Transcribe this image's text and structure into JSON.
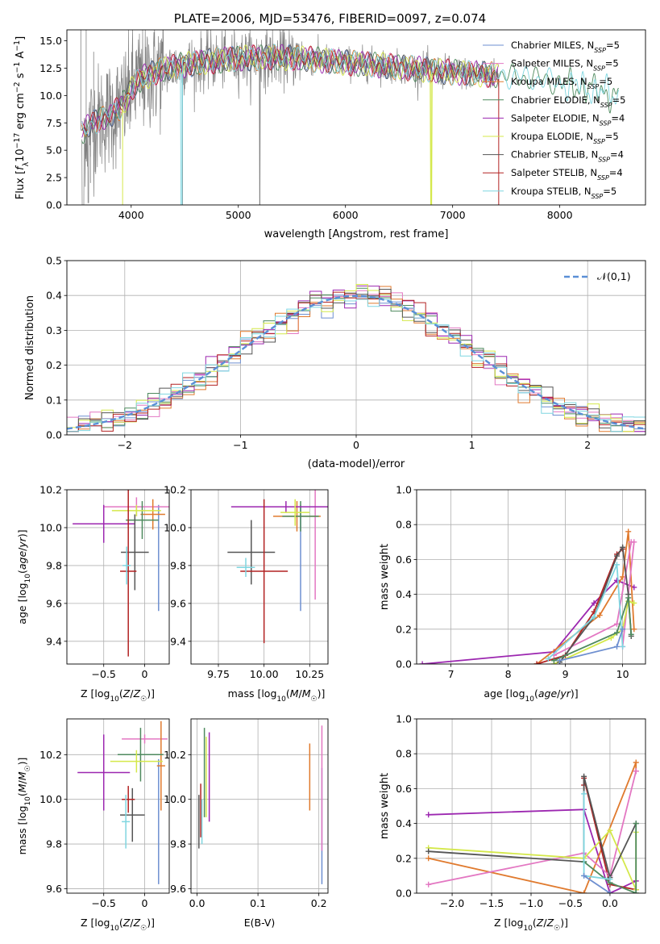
{
  "title": "PLATE=2006, MJD=53476, FIBERID=0097, z=0.074",
  "chart_data": [
    {
      "id": "spectrum",
      "type": "line",
      "xlabel": "wavelength [Angstrom, rest frame]",
      "ylabel": "Flux [f_λ 10^-17 erg cm^-2 s^-1 A^-1]",
      "xlim": [
        3400,
        8800
      ],
      "ylim": [
        0,
        16
      ],
      "xticks": [
        4000,
        5000,
        6000,
        7000,
        8000
      ],
      "yticks": [
        0.0,
        2.5,
        5.0,
        7.5,
        10.0,
        12.5,
        15.0
      ],
      "legend_position": "right",
      "series": [
        {
          "name": "Chabrier MILES, N_SSP=5",
          "color": "#6e8fd0"
        },
        {
          "name": "Salpeter MILES, N_SSP=5",
          "color": "#e377c2"
        },
        {
          "name": "Kroupa MILES, N_SSP=5",
          "color": "#e07a2e"
        },
        {
          "name": "Chabrier ELODIE, N_SSP=5",
          "color": "#4e8a5e"
        },
        {
          "name": "Salpeter ELODIE, N_SSP=4",
          "color": "#9c27b0"
        },
        {
          "name": "Kroupa ELODIE, N_SSP=5",
          "color": "#d4e84a"
        },
        {
          "name": "Chabrier STELIB, N_SSP=4",
          "color": "#555555"
        },
        {
          "name": "Salpeter STELIB, N_SSP=4",
          "color": "#b22222"
        },
        {
          "name": "Kroupa STELIB, N_SSP=5",
          "color": "#7fd6e0"
        }
      ],
      "data_color": "#808080",
      "continuum": {
        "x": [
          3550,
          3700,
          3850,
          3950,
          4000,
          4100,
          4300,
          4500,
          4700,
          5000,
          5300,
          5600,
          6000,
          6300,
          6600,
          6900,
          7200,
          7500,
          7800,
          8000,
          8200,
          8400,
          8550
        ],
        "y": [
          6.8,
          7.8,
          8.5,
          9.5,
          10.6,
          11.6,
          12.4,
          12.8,
          13.1,
          13.4,
          13.5,
          13.4,
          13.0,
          12.8,
          12.5,
          12.2,
          12.0,
          11.8,
          11.5,
          11.2,
          10.8,
          10.4,
          9.8
        ]
      }
    },
    {
      "id": "residuals",
      "type": "histogram",
      "xlabel": "(data-model)/error",
      "ylabel": "Normed distribution",
      "xlim": [
        -2.5,
        2.5
      ],
      "ylim": [
        0,
        0.5
      ],
      "xticks": [
        -2,
        -1,
        0,
        1,
        2
      ],
      "yticks": [
        0.0,
        0.1,
        0.2,
        0.3,
        0.4,
        0.5
      ],
      "grid": true,
      "legend": "𝒩(0,1)",
      "legend_position": "top-right",
      "gaussian_color": "#5a8fd6"
    },
    {
      "id": "age-vs-Z",
      "type": "errorbar",
      "xlabel": "Z [log10(Z/Z☉)]",
      "ylabel": "age  [log10(age/yr)]",
      "xlim": [
        -0.95,
        0.3
      ],
      "ylim": [
        9.28,
        10.2
      ],
      "xticks": [
        -0.5,
        0.0
      ],
      "yticks": [
        9.4,
        9.6,
        9.8,
        10.0,
        10.2
      ],
      "grid": true,
      "points": [
        {
          "x": 0.17,
          "y": 9.84,
          "xerr": 0,
          "yerr": 0.28,
          "color": "#6e8fd0"
        },
        {
          "x": -0.1,
          "y": 10.11,
          "xerr": 0.4,
          "yerr": 0.05,
          "color": "#e377c2"
        },
        {
          "x": 0.1,
          "y": 10.07,
          "xerr": 0.15,
          "yerr": 0.08,
          "color": "#e07a2e"
        },
        {
          "x": -0.03,
          "y": 10.04,
          "xerr": 0.2,
          "yerr": 0.1,
          "color": "#4e8a5e"
        },
        {
          "x": -0.5,
          "y": 10.02,
          "xerr": 0.38,
          "yerr": 0.1,
          "color": "#9c27b0"
        },
        {
          "x": -0.1,
          "y": 10.09,
          "xerr": 0.3,
          "yerr": 0.03,
          "color": "#d4e84a"
        },
        {
          "x": -0.12,
          "y": 9.87,
          "xerr": 0.17,
          "yerr": 0.2,
          "color": "#555555"
        },
        {
          "x": -0.2,
          "y": 9.77,
          "xerr": 0.1,
          "yerr": 0.45,
          "color": "#b22222"
        },
        {
          "x": -0.22,
          "y": 9.8,
          "xerr": 0.05,
          "yerr": 0.1,
          "color": "#7fd6e0"
        }
      ]
    },
    {
      "id": "age-vs-mass",
      "type": "errorbar",
      "xlabel": "mass [log10(M/M☉)]",
      "ylabel": "",
      "xlim": [
        9.6,
        10.35
      ],
      "ylim": [
        9.28,
        10.2
      ],
      "xticks": [
        9.75,
        10.0,
        10.25
      ],
      "yticks": [
        9.4,
        9.6,
        9.8,
        10.0,
        10.2
      ],
      "grid": true,
      "points": [
        {
          "x": 10.2,
          "y": 9.84,
          "xerr": 0,
          "yerr": 0.28,
          "color": "#6e8fd0"
        },
        {
          "x": 10.28,
          "y": 10.0,
          "xerr": 0,
          "yerr": 0.38,
          "color": "#e377c2"
        },
        {
          "x": 10.18,
          "y": 10.06,
          "xerr": 0.13,
          "yerr": 0.08,
          "color": "#e07a2e"
        },
        {
          "x": 10.2,
          "y": 10.06,
          "xerr": 0.1,
          "yerr": 0.08,
          "color": "#4e8a5e"
        },
        {
          "x": 10.12,
          "y": 10.11,
          "xerr": 0.3,
          "yerr": 0.03,
          "color": "#9c27b0"
        },
        {
          "x": 10.17,
          "y": 10.08,
          "xerr": 0.08,
          "yerr": 0.07,
          "color": "#d4e84a"
        },
        {
          "x": 9.93,
          "y": 9.87,
          "xerr": 0.13,
          "yerr": 0.17,
          "color": "#555555"
        },
        {
          "x": 10.0,
          "y": 9.77,
          "xerr": 0.13,
          "yerr": 0.38,
          "color": "#b22222"
        },
        {
          "x": 9.9,
          "y": 9.79,
          "xerr": 0.05,
          "yerr": 0.05,
          "color": "#7fd6e0"
        }
      ]
    },
    {
      "id": "weight-vs-age",
      "type": "line",
      "xlabel": "age  [log10(age/yr)]",
      "ylabel": "mass weight",
      "xlim": [
        6.4,
        10.4
      ],
      "ylim": [
        0,
        1
      ],
      "xticks": [
        7,
        8,
        9,
        10
      ],
      "yticks": [
        0.0,
        0.2,
        0.4,
        0.6,
        0.8,
        1.0
      ],
      "grid": true,
      "series": [
        {
          "color": "#9c27b0",
          "x": [
            6.5,
            8.8,
            9.5,
            9.9,
            10.2
          ],
          "y": [
            0.0,
            0.07,
            0.35,
            0.48,
            0.44
          ]
        },
        {
          "color": "#e07a2e",
          "x": [
            8.5,
            9.6,
            10.0,
            10.1,
            10.2
          ],
          "y": [
            0.0,
            0.28,
            0.5,
            0.76,
            0.2
          ]
        },
        {
          "color": "#b22222",
          "x": [
            8.5,
            9.0,
            9.5,
            9.9,
            10.0
          ],
          "y": [
            0.0,
            0.05,
            0.3,
            0.63,
            0.66
          ]
        },
        {
          "color": "#e377c2",
          "x": [
            8.8,
            9.9,
            10.15,
            10.2,
            10.0
          ],
          "y": [
            0.05,
            0.23,
            0.7,
            0.7,
            0.1
          ]
        },
        {
          "color": "#d4e84a",
          "x": [
            8.8,
            9.8,
            10.0,
            10.1,
            10.2
          ],
          "y": [
            0.0,
            0.15,
            0.2,
            0.36,
            0.35
          ]
        },
        {
          "color": "#555555",
          "x": [
            8.9,
            9.5,
            9.9,
            10.0,
            10.1,
            10.15
          ],
          "y": [
            0.01,
            0.27,
            0.62,
            0.67,
            0.4,
            0.16
          ]
        },
        {
          "color": "#4e8a5e",
          "x": [
            8.8,
            9.9,
            10.1,
            10.15
          ],
          "y": [
            0.02,
            0.18,
            0.38,
            0.17
          ]
        },
        {
          "color": "#7fd6e0",
          "x": [
            8.7,
            9.5,
            9.9,
            10.0
          ],
          "y": [
            0.03,
            0.27,
            0.57,
            0.1
          ]
        },
        {
          "color": "#6e8fd0",
          "x": [
            8.9,
            9.9,
            10.0
          ],
          "y": [
            0.02,
            0.1,
            0.2
          ]
        }
      ]
    },
    {
      "id": "mass-vs-Z",
      "type": "errorbar",
      "xlabel": "Z [log10(Z/Z☉)]",
      "ylabel": "mass [log10(M/M☉)]",
      "xlim": [
        -0.95,
        0.3
      ],
      "ylim": [
        9.58,
        10.36
      ],
      "xticks": [
        -0.5,
        0.0
      ],
      "yticks": [
        9.6,
        9.8,
        10.0,
        10.2
      ],
      "grid": true,
      "points": [
        {
          "x": 0.17,
          "y": 9.9,
          "xerr": 0,
          "yerr": 0.28,
          "color": "#6e8fd0"
        },
        {
          "x": 0.0,
          "y": 10.27,
          "xerr": 0.28,
          "yerr": 0.02,
          "color": "#e377c2"
        },
        {
          "x": 0.2,
          "y": 10.15,
          "xerr": 0.05,
          "yerr": 0.2,
          "color": "#e07a2e"
        },
        {
          "x": -0.05,
          "y": 10.2,
          "xerr": 0.28,
          "yerr": 0.12,
          "color": "#4e8a5e"
        },
        {
          "x": -0.5,
          "y": 10.12,
          "xerr": 0.32,
          "yerr": 0.17,
          "color": "#9c27b0"
        },
        {
          "x": -0.1,
          "y": 10.17,
          "xerr": 0.32,
          "yerr": 0.05,
          "color": "#d4e84a"
        },
        {
          "x": -0.15,
          "y": 9.93,
          "xerr": 0.15,
          "yerr": 0.12,
          "color": "#555555"
        },
        {
          "x": -0.2,
          "y": 10.0,
          "xerr": 0.08,
          "yerr": 0.06,
          "color": "#b22222"
        },
        {
          "x": -0.23,
          "y": 9.9,
          "xerr": 0.05,
          "yerr": 0.12,
          "color": "#7fd6e0"
        }
      ]
    },
    {
      "id": "mass-vs-EBV",
      "type": "errorbar",
      "xlabel": "E(B-V)",
      "ylabel": "",
      "xlim": [
        -0.01,
        0.215
      ],
      "ylim": [
        9.58,
        10.36
      ],
      "xticks": [
        0.0,
        0.1,
        0.2
      ],
      "yticks": [
        9.6,
        9.8,
        10.0,
        10.2
      ],
      "grid": true,
      "points": [
        {
          "x": 0.205,
          "y": 9.88,
          "xerr": 0,
          "yerr": 0.26,
          "color": "#6e8fd0"
        },
        {
          "x": 0.205,
          "y": 10.05,
          "xerr": 0,
          "yerr": 0.28,
          "color": "#e377c2"
        },
        {
          "x": 0.185,
          "y": 10.1,
          "xerr": 0,
          "yerr": 0.15,
          "color": "#e07a2e"
        },
        {
          "x": 0.012,
          "y": 10.12,
          "xerr": 0,
          "yerr": 0.2,
          "color": "#4e8a5e"
        },
        {
          "x": 0.02,
          "y": 10.1,
          "xerr": 0,
          "yerr": 0.2,
          "color": "#9c27b0"
        },
        {
          "x": 0.015,
          "y": 10.1,
          "xerr": 0,
          "yerr": 0.18,
          "color": "#d4e84a"
        },
        {
          "x": 0.003,
          "y": 9.9,
          "xerr": 0,
          "yerr": 0.12,
          "color": "#555555"
        },
        {
          "x": 0.006,
          "y": 9.95,
          "xerr": 0,
          "yerr": 0.12,
          "color": "#b22222"
        },
        {
          "x": 0.008,
          "y": 9.9,
          "xerr": 0,
          "yerr": 0.1,
          "color": "#7fd6e0"
        }
      ]
    },
    {
      "id": "weight-vs-Z",
      "type": "line",
      "xlabel": "Z [log10(Z/Z☉)]",
      "ylabel": "mass weight",
      "xlim": [
        -2.45,
        0.45
      ],
      "ylim": [
        0,
        1
      ],
      "xticks": [
        -2.0,
        -1.5,
        -1.0,
        -0.5,
        0.0
      ],
      "yticks": [
        0.0,
        0.2,
        0.4,
        0.6,
        0.8,
        1.0
      ],
      "grid": true,
      "series": [
        {
          "color": "#9c27b0",
          "x": [
            -2.3,
            -0.33,
            0.0,
            0.33
          ],
          "y": [
            0.45,
            0.48,
            0.0,
            0.07
          ]
        },
        {
          "color": "#e07a2e",
          "x": [
            -2.3,
            -0.33,
            0.33,
            0.33
          ],
          "y": [
            0.2,
            0.0,
            0.75,
            0.7
          ]
        },
        {
          "color": "#b22222",
          "x": [
            -0.33,
            -0.33,
            0.0,
            0.33
          ],
          "y": [
            0.62,
            0.66,
            0.05,
            0.02
          ]
        },
        {
          "color": "#e377c2",
          "x": [
            -2.3,
            -0.33,
            0.0,
            0.33,
            0.33
          ],
          "y": [
            0.05,
            0.23,
            0.1,
            0.7,
            0.7
          ]
        },
        {
          "color": "#d4e84a",
          "x": [
            -2.3,
            -0.33,
            0.0,
            0.33,
            0.33
          ],
          "y": [
            0.26,
            0.2,
            0.36,
            0.02,
            0.35
          ]
        },
        {
          "color": "#555555",
          "x": [
            -2.3,
            -0.33,
            -0.33,
            0.0,
            0.33
          ],
          "y": [
            0.24,
            0.18,
            0.67,
            0.09,
            0.4
          ]
        },
        {
          "color": "#4e8a5e",
          "x": [
            -0.33,
            0.0,
            0.33,
            0.33
          ],
          "y": [
            0.18,
            0.06,
            0.0,
            0.4
          ]
        },
        {
          "color": "#7fd6e0",
          "x": [
            -0.33,
            -0.33,
            0.0
          ],
          "y": [
            0.57,
            0.1,
            0.08
          ]
        },
        {
          "color": "#6e8fd0",
          "x": [
            -0.33,
            0.0
          ],
          "y": [
            0.1,
            0.0
          ]
        }
      ]
    }
  ]
}
